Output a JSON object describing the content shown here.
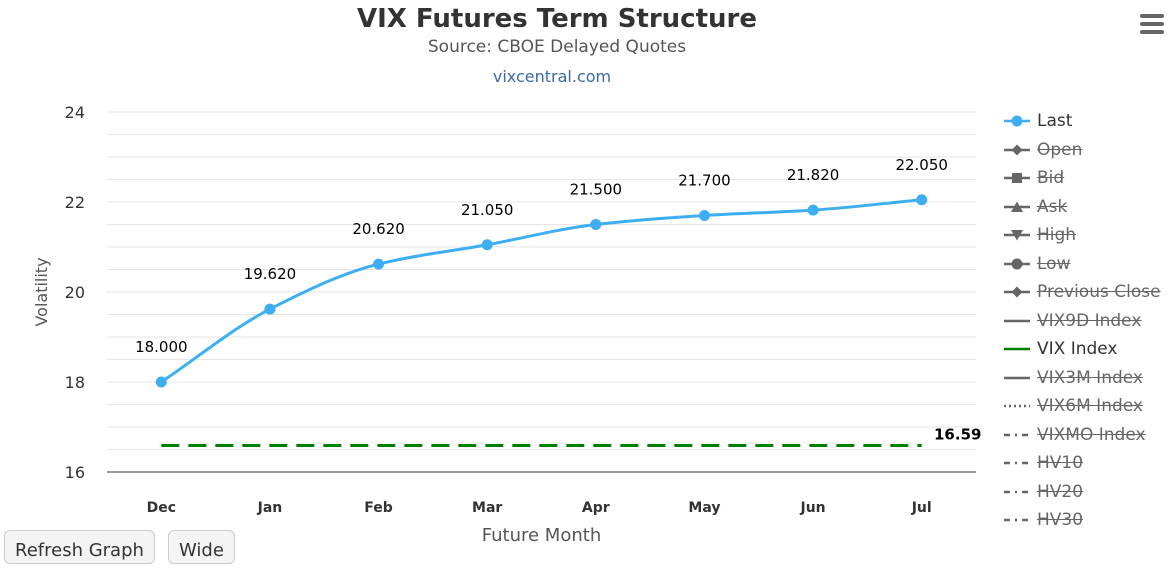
{
  "header": {
    "title": "VIX Futures Term Structure",
    "subtitle": "Source: CBOE Delayed Quotes",
    "credit": "vixcentral.com"
  },
  "buttons": {
    "refresh": "Refresh Graph",
    "wide": "Wide"
  },
  "chart_data": {
    "type": "line",
    "title": "VIX Futures Term Structure",
    "subtitle": "Source: CBOE Delayed Quotes",
    "xlabel": "Future Month",
    "ylabel": "Volatility",
    "categories": [
      "Dec",
      "Jan",
      "Feb",
      "Mar",
      "Apr",
      "May",
      "Jun",
      "Jul"
    ],
    "ylim": [
      16,
      24
    ],
    "yticks": [
      16,
      18,
      20,
      22,
      24
    ],
    "grid": true,
    "legend_position": "right",
    "series": [
      {
        "name": "Last",
        "values": [
          18.0,
          19.62,
          20.62,
          21.05,
          21.5,
          21.7,
          21.82,
          22.05
        ],
        "labels": [
          "18.000",
          "19.620",
          "20.620",
          "21.050",
          "21.500",
          "21.700",
          "21.820",
          "22.050"
        ],
        "color": "#3daef2",
        "visible": true
      },
      {
        "name": "VIX Index",
        "constant": 16.59,
        "label": "16.59",
        "color": "#008000",
        "dash": "dashed",
        "visible": true
      }
    ],
    "legend": [
      {
        "name": "Last",
        "symbol": "circle",
        "line": "solid",
        "color": "#3daef2",
        "hidden": false
      },
      {
        "name": "Open",
        "symbol": "diamond",
        "line": "solid",
        "color": "#666666",
        "hidden": true
      },
      {
        "name": "Bid",
        "symbol": "square",
        "line": "solid",
        "color": "#666666",
        "hidden": true
      },
      {
        "name": "Ask",
        "symbol": "triangle",
        "line": "solid",
        "color": "#666666",
        "hidden": true
      },
      {
        "name": "High",
        "symbol": "triangle-down",
        "line": "solid",
        "color": "#666666",
        "hidden": true
      },
      {
        "name": "Low",
        "symbol": "circle",
        "line": "solid",
        "color": "#666666",
        "hidden": true
      },
      {
        "name": "Previous Close",
        "symbol": "diamond",
        "line": "solid",
        "color": "#666666",
        "hidden": true
      },
      {
        "name": "VIX9D Index",
        "symbol": "none",
        "line": "solid",
        "color": "#666666",
        "hidden": true
      },
      {
        "name": "VIX Index",
        "symbol": "none",
        "line": "solid",
        "color": "#008000",
        "hidden": false
      },
      {
        "name": "VIX3M Index",
        "symbol": "none",
        "line": "solid",
        "color": "#666666",
        "hidden": true
      },
      {
        "name": "VIX6M Index",
        "symbol": "none",
        "line": "dotted",
        "color": "#666666",
        "hidden": true
      },
      {
        "name": "VIXMO Index",
        "symbol": "none",
        "line": "dashdot",
        "color": "#666666",
        "hidden": true
      },
      {
        "name": "HV10",
        "symbol": "none",
        "line": "dashdot",
        "color": "#666666",
        "hidden": true
      },
      {
        "name": "HV20",
        "symbol": "none",
        "line": "dashdot",
        "color": "#666666",
        "hidden": true
      },
      {
        "name": "HV30",
        "symbol": "none",
        "line": "dashdot",
        "color": "#666666",
        "hidden": true
      }
    ]
  }
}
